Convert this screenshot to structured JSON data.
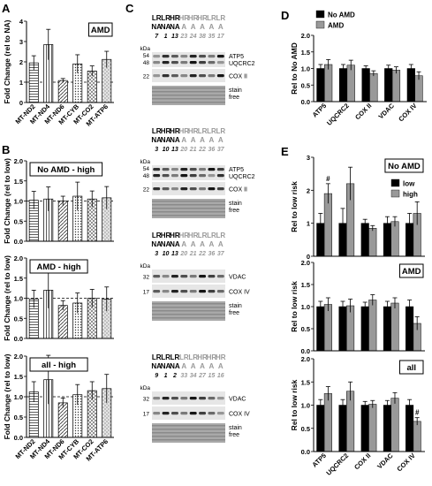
{
  "panel_letters": [
    "A",
    "B",
    "C",
    "D",
    "E"
  ],
  "chart_data": [
    {
      "panel": "A",
      "type": "bar",
      "tag": "AMD",
      "ylabel": "Fold Change (rel to NA)",
      "ylim": [
        0,
        4
      ],
      "yticks": [
        "0",
        "1",
        "2",
        "3",
        "4"
      ],
      "reference_line": 1,
      "categories": [
        "MT-ND2",
        "MT-ND4",
        "MT-ND6",
        "MT-CYB",
        "MT-CO2",
        "MT-ATP6"
      ],
      "patterns": [
        "hstripe",
        "vstripe",
        "diag",
        "dots",
        "cross",
        "speckle"
      ],
      "values": [
        1.95,
        2.85,
        1.08,
        1.9,
        1.55,
        2.12
      ],
      "errors": [
        0.35,
        0.75,
        0.1,
        0.45,
        0.25,
        0.4
      ]
    },
    {
      "panel": "B",
      "type": "bar",
      "tag": "No AMD - high",
      "ylabel": "Fold Change (rel to low)",
      "ylim": [
        0,
        2
      ],
      "yticks": [
        "0.0",
        "0.5",
        "1.0",
        "1.5",
        "2.0"
      ],
      "reference_line": 1,
      "categories": [
        "MT-ND2",
        "MT-ND4",
        "MT-ND6",
        "MT-CYB",
        "MT-CO2",
        "MT-ATP6"
      ],
      "patterns": [
        "hstripe",
        "vstripe",
        "diag",
        "dots",
        "cross",
        "speckle"
      ],
      "values": [
        1.02,
        1.05,
        1.0,
        1.12,
        1.05,
        1.08
      ],
      "errors": [
        0.22,
        0.3,
        0.12,
        0.35,
        0.2,
        0.28
      ],
      "show_xlabels": false
    },
    {
      "panel": "B2",
      "type": "bar",
      "tag": "AMD - high",
      "ylabel": "Fold Change (rel to low)",
      "ylim": [
        0,
        2
      ],
      "yticks": [
        "0.0",
        "0.5",
        "1.0",
        "1.5",
        "2.0"
      ],
      "reference_line": 1,
      "categories": [
        "MT-ND2",
        "MT-ND4",
        "MT-ND6",
        "MT-CYB",
        "MT-CO2",
        "MT-ATP6"
      ],
      "patterns": [
        "hstripe",
        "vstripe",
        "diag",
        "dots",
        "cross",
        "speckle"
      ],
      "values": [
        0.98,
        1.2,
        0.82,
        0.88,
        1.0,
        0.98
      ],
      "errors": [
        0.22,
        0.45,
        0.12,
        0.25,
        0.22,
        0.3
      ],
      "show_xlabels": false
    },
    {
      "panel": "B3",
      "type": "bar",
      "tag": "all - high",
      "ylabel": "Fold Change (rel to low)",
      "ylim": [
        0,
        2
      ],
      "yticks": [
        "0.0",
        "0.5",
        "1.0",
        "1.5",
        "2.0"
      ],
      "reference_line": 1,
      "categories": [
        "MT-ND2",
        "MT-ND4",
        "MT-ND6",
        "MT-CYB",
        "MT-CO2",
        "MT-ATP6"
      ],
      "patterns": [
        "hstripe",
        "vstripe",
        "diag",
        "dots",
        "cross",
        "speckle"
      ],
      "values": [
        1.12,
        1.42,
        0.85,
        1.05,
        1.15,
        1.2
      ],
      "errors": [
        0.25,
        0.6,
        0.12,
        0.25,
        0.22,
        0.35
      ],
      "show_xlabels": true
    },
    {
      "panel": "D",
      "type": "bar",
      "ylabel": "Rel to No AMD",
      "ylim": [
        0,
        2
      ],
      "yticks": [
        "0.0",
        "0.5",
        "1.0",
        "1.5",
        "2.0"
      ],
      "categories": [
        "ATP5",
        "UQCRC2",
        "COX II",
        "VDAC",
        "COX IV"
      ],
      "legend": [
        "No AMD",
        "AMD"
      ],
      "colors": [
        "#000000",
        "#999999"
      ],
      "series": [
        {
          "name": "No AMD",
          "values": [
            1.0,
            1.0,
            1.0,
            1.0,
            1.0
          ],
          "errors": [
            0.12,
            0.12,
            0.08,
            0.1,
            0.12
          ]
        },
        {
          "name": "AMD",
          "values": [
            1.12,
            1.1,
            0.85,
            0.95,
            0.78
          ],
          "errors": [
            0.15,
            0.15,
            0.08,
            0.1,
            0.12
          ]
        }
      ],
      "show_xlabels": true
    },
    {
      "panel": "E",
      "type": "bar",
      "tag": "No AMD",
      "ylabel": "Rel to low risk",
      "ylim": [
        0,
        3
      ],
      "yticks": [
        "0",
        "1",
        "2",
        "3"
      ],
      "categories": [
        "ATP5",
        "UQCRC2",
        "COX II",
        "VDAC",
        "COX IV"
      ],
      "legend": [
        "low",
        "high"
      ],
      "colors": [
        "#000000",
        "#999999"
      ],
      "series": [
        {
          "name": "low",
          "values": [
            1.0,
            1.0,
            1.0,
            1.0,
            1.0
          ],
          "errors": [
            0.3,
            0.45,
            0.12,
            0.2,
            0.3
          ]
        },
        {
          "name": "high",
          "values": [
            1.9,
            2.2,
            0.85,
            1.05,
            1.3
          ],
          "errors": [
            0.3,
            0.5,
            0.08,
            0.15,
            0.35
          ]
        }
      ],
      "annotations": [
        {
          "category": "ATP5",
          "text": "#"
        }
      ],
      "show_xlabels": false
    },
    {
      "panel": "E2",
      "type": "bar",
      "tag": "AMD",
      "ylabel": "Rel to low risk",
      "ylim": [
        0,
        2
      ],
      "yticks": [
        "0.0",
        "0.5",
        "1.0",
        "1.5",
        "2.0"
      ],
      "categories": [
        "ATP5",
        "UQCRC2",
        "COX II",
        "VDAC",
        "COX IV"
      ],
      "colors": [
        "#000000",
        "#999999"
      ],
      "series": [
        {
          "name": "low",
          "values": [
            1.0,
            1.0,
            1.0,
            1.0,
            1.0
          ],
          "errors": [
            0.12,
            0.12,
            0.1,
            0.12,
            0.15
          ]
        },
        {
          "name": "high",
          "values": [
            1.05,
            1.02,
            1.15,
            1.08,
            0.62
          ],
          "errors": [
            0.15,
            0.15,
            0.12,
            0.12,
            0.15
          ]
        }
      ],
      "show_xlabels": false
    },
    {
      "panel": "E3",
      "type": "bar",
      "tag": "all",
      "ylabel": "Rel to low risk",
      "ylim": [
        0,
        2
      ],
      "yticks": [
        "0.0",
        "0.5",
        "1.0",
        "1.5",
        "2.0"
      ],
      "categories": [
        "ATP5",
        "UQCRC2",
        "COX II",
        "VDAC",
        "COX IV"
      ],
      "colors": [
        "#000000",
        "#999999"
      ],
      "series": [
        {
          "name": "low",
          "values": [
            1.0,
            1.0,
            1.0,
            1.0,
            1.0
          ],
          "errors": [
            0.12,
            0.12,
            0.08,
            0.1,
            0.12
          ]
        },
        {
          "name": "high",
          "values": [
            1.25,
            1.3,
            1.02,
            1.15,
            0.65
          ],
          "errors": [
            0.15,
            0.2,
            0.08,
            0.12,
            0.08
          ]
        }
      ],
      "annotations": [
        {
          "category": "COX IV",
          "text": "#"
        }
      ],
      "show_xlabels": true
    }
  ],
  "blots": [
    {
      "row1": [
        "LR",
        "LR",
        "HR",
        "HR",
        "HR",
        "HR",
        "LR",
        "LR"
      ],
      "row2": [
        "NA",
        "NA",
        "NA",
        "A",
        "A",
        "A",
        "A",
        "A"
      ],
      "ids": [
        "7",
        "1",
        "13",
        "23",
        "24",
        "38",
        "35",
        "17"
      ],
      "strips": [
        {
          "kda": [
            "54",
            "48"
          ],
          "labels": [
            "ATP5",
            "UQCRC2"
          ],
          "kind": "double"
        },
        {
          "kda": [
            "22"
          ],
          "labels": [
            "COX II"
          ],
          "kind": "single"
        },
        {
          "kda": [],
          "labels": [
            "stain",
            "free"
          ],
          "kind": "stain"
        }
      ]
    },
    {
      "row1": [
        "LR",
        "HR",
        "HR",
        "HR",
        "HR",
        "LR",
        "LR",
        "LR"
      ],
      "row2": [
        "NA",
        "NA",
        "NA",
        "A",
        "A",
        "A",
        "A",
        "A"
      ],
      "ids": [
        "3",
        "10",
        "13",
        "20",
        "21",
        "22",
        "36",
        "37"
      ],
      "strips": [
        {
          "kda": [
            "54",
            "48"
          ],
          "labels": [
            "ATP5",
            "UQCRC2"
          ],
          "kind": "double"
        },
        {
          "kda": [
            "22"
          ],
          "labels": [
            "COX II"
          ],
          "kind": "single"
        },
        {
          "kda": [],
          "labels": [
            "stain",
            "free"
          ],
          "kind": "stain"
        }
      ]
    },
    {
      "row1": [
        "LR",
        "HR",
        "HR",
        "HR",
        "HR",
        "LR",
        "LR",
        "LR"
      ],
      "row2": [
        "NA",
        "NA",
        "NA",
        "A",
        "A",
        "A",
        "A",
        "A"
      ],
      "ids": [
        "3",
        "10",
        "13",
        "20",
        "21",
        "22",
        "36",
        "37"
      ],
      "strips": [
        {
          "kda": [
            "32"
          ],
          "labels": [
            "VDAC"
          ],
          "kind": "single"
        },
        {
          "kda": [
            "17"
          ],
          "labels": [
            "COX IV"
          ],
          "kind": "single"
        },
        {
          "kda": [],
          "labels": [
            "stain",
            "free"
          ],
          "kind": "stain"
        }
      ]
    },
    {
      "row1": [
        "LR",
        "LR",
        "LR",
        "LR",
        "LR",
        "HR",
        "HR",
        "HR"
      ],
      "row2": [
        "NA",
        "NA",
        "NA",
        "A",
        "A",
        "A",
        "A",
        "A"
      ],
      "ids": [
        "9",
        "1",
        "2",
        "33",
        "34",
        "27",
        "15",
        "16"
      ],
      "strips": [
        {
          "kda": [
            "32"
          ],
          "labels": [
            "VDAC"
          ],
          "kind": "single"
        },
        {
          "kda": [
            "17"
          ],
          "labels": [
            "COX IV"
          ],
          "kind": "single"
        },
        {
          "kda": [],
          "labels": [
            "stain",
            "free"
          ],
          "kind": "stain"
        }
      ]
    }
  ],
  "kda_label": "kDa"
}
